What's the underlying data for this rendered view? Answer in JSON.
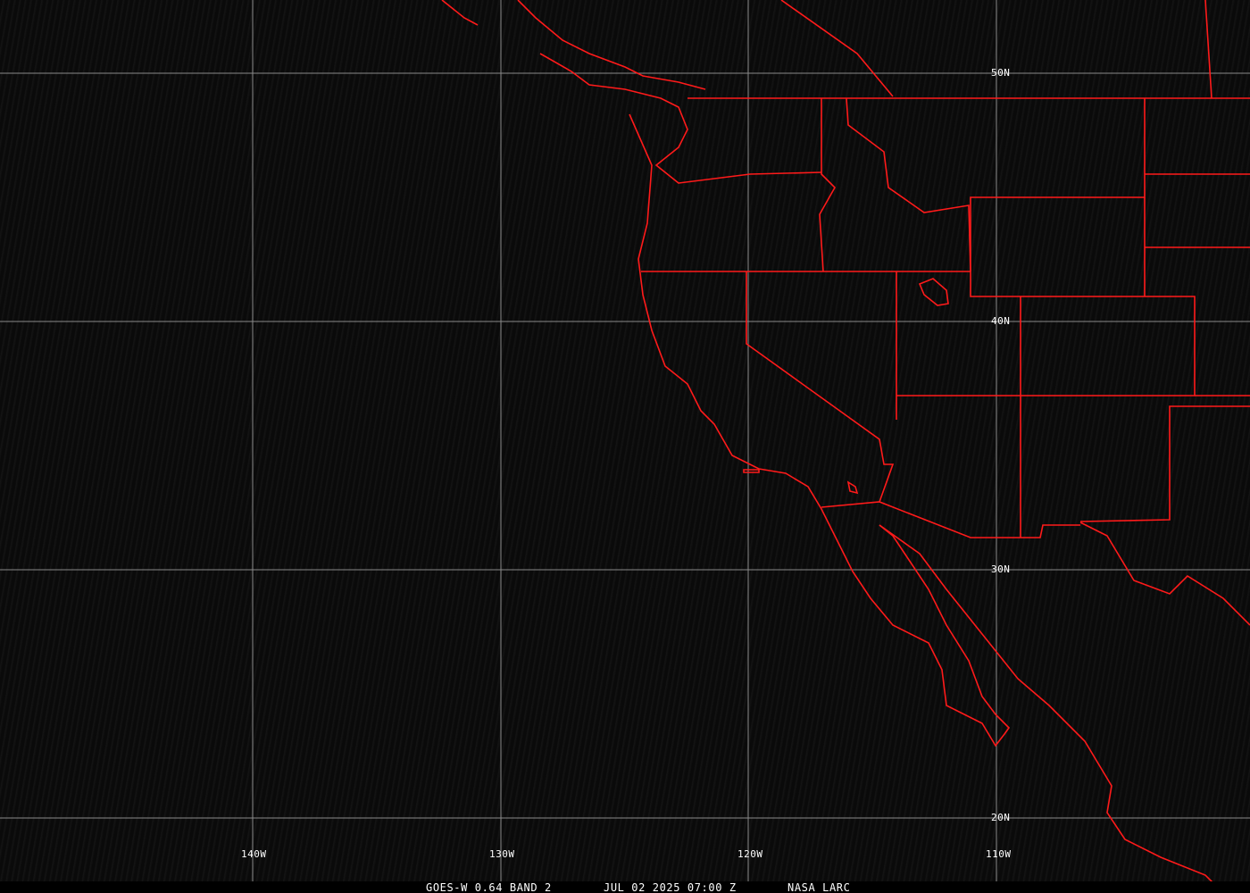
{
  "map": {
    "grid_lon_labels": [
      "140W",
      "130W",
      "120W",
      "110W"
    ],
    "grid_lat_labels": [
      "50N",
      "40N",
      "30N",
      "20N"
    ],
    "grid_color": "#8a8a8a",
    "boundary_color": "#ff0000"
  },
  "caption": {
    "satellite": "GOES-W 0.64 BAND 2",
    "datetime": "JUL 02 2025 07:00 Z",
    "source": "NASA LARC"
  }
}
